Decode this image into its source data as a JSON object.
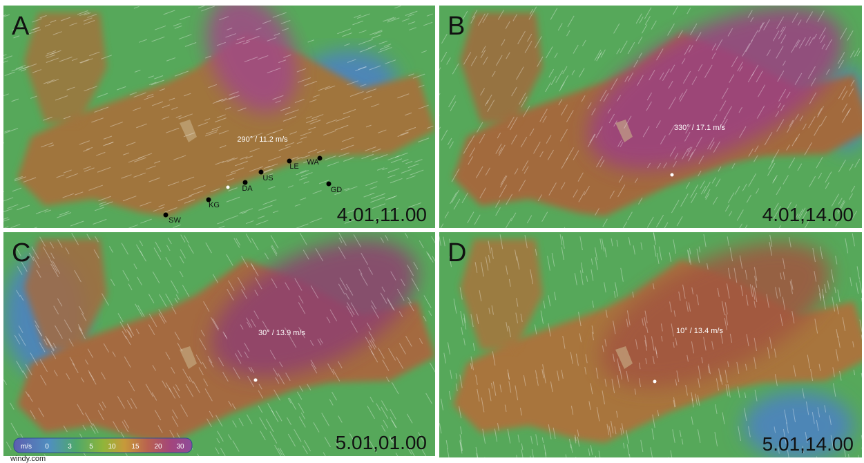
{
  "panels": [
    {
      "letter": "A",
      "timestamp": "4.01,11.00",
      "wind": "290° / 11.2 m/s",
      "stations": [
        "SW",
        "KG",
        "DA",
        "US",
        "LE",
        "WA",
        "GD"
      ]
    },
    {
      "letter": "B",
      "timestamp": "4.01,14.00",
      "wind": "330° / 17.1 m/s"
    },
    {
      "letter": "C",
      "timestamp": "5.01,01.00",
      "wind": "30° / 13.9 m/s"
    },
    {
      "letter": "D",
      "timestamp": "5.01,14.00",
      "wind": "10° / 13.4 m/s"
    }
  ],
  "legend": {
    "unit": "m/s",
    "values": [
      "0",
      "3",
      "5",
      "10",
      "15",
      "20",
      "30"
    ]
  },
  "credit": "windy.com"
}
